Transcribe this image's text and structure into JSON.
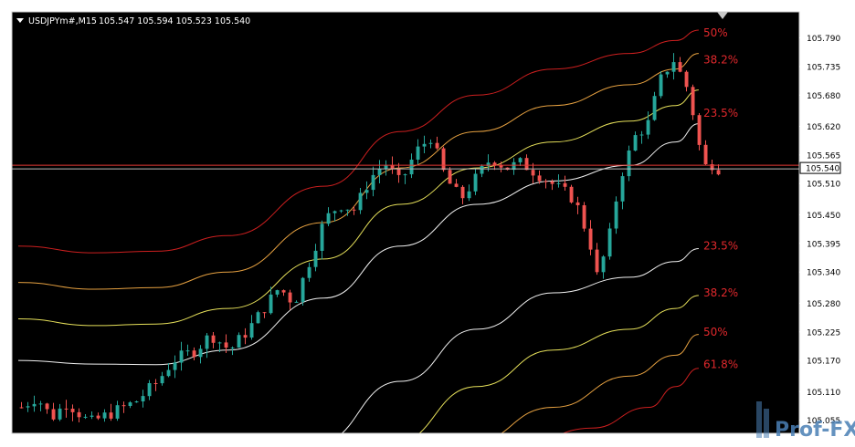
{
  "chart_data": {
    "type": "candlestick",
    "header": {
      "symbol": "USDJPYm#,M15",
      "ohlc": "105.547 105.594 105.523 105.540"
    },
    "ylim": [
      105.03,
      105.84
    ],
    "y_ticks": [
      105.79,
      105.735,
      105.68,
      105.62,
      105.565,
      105.51,
      105.45,
      105.395,
      105.34,
      105.28,
      105.225,
      105.17,
      105.11,
      105.055
    ],
    "y_tick_labels": [
      "105.790",
      "105.735",
      "105.680",
      "105.620",
      "105.565",
      "105.510",
      "105.450",
      "105.395",
      "105.340",
      "105.280",
      "105.225",
      "105.170",
      "105.110",
      "105.055"
    ],
    "current_price": 105.54,
    "current_price_label": "105.540",
    "colors": {
      "background": "#000000",
      "bull": "#26a69a",
      "bear": "#ef5350",
      "axis": "#ffffff",
      "price_line": "#e53935",
      "level_label": "#e0282c"
    },
    "candle_count": 110,
    "path_points": [
      [
        0,
        105.08
      ],
      [
        4,
        105.1
      ],
      [
        8,
        105.06
      ],
      [
        12,
        105.09
      ],
      [
        18,
        105.05
      ],
      [
        24,
        105.07
      ],
      [
        30,
        105.09
      ],
      [
        36,
        105.13
      ],
      [
        40,
        105.17
      ],
      [
        46,
        105.19
      ],
      [
        50,
        105.22
      ],
      [
        55,
        105.19
      ],
      [
        60,
        105.23
      ],
      [
        64,
        105.27
      ],
      [
        68,
        105.31
      ],
      [
        72,
        105.28
      ],
      [
        76,
        105.36
      ],
      [
        80,
        105.44
      ],
      [
        84,
        105.47
      ],
      [
        88,
        105.46
      ],
      [
        92,
        105.52
      ],
      [
        96,
        105.55
      ],
      [
        100,
        105.51
      ],
      [
        104,
        105.57
      ],
      [
        108,
        105.6
      ],
      [
        112,
        105.52
      ],
      [
        116,
        105.48
      ],
      [
        120,
        105.52
      ],
      [
        124,
        105.56
      ],
      [
        128,
        105.54
      ],
      [
        132,
        105.55
      ],
      [
        136,
        105.53
      ],
      [
        140,
        105.51
      ],
      [
        146,
        105.48
      ],
      [
        150,
        105.4
      ],
      [
        152,
        105.33
      ],
      [
        155,
        105.4
      ],
      [
        158,
        105.52
      ],
      [
        162,
        105.6
      ],
      [
        166,
        105.63
      ],
      [
        168,
        105.7
      ],
      [
        172,
        105.75
      ],
      [
        176,
        105.69
      ],
      [
        178,
        105.62
      ],
      [
        180,
        105.54
      ],
      [
        182,
        105.55
      ],
      [
        184,
        105.54
      ]
    ],
    "bands": [
      {
        "level": "50%",
        "color": "#cc1f1f",
        "points": [
          [
            0,
            105.39
          ],
          [
            20,
            105.377
          ],
          [
            36,
            105.38
          ],
          [
            55,
            105.41
          ],
          [
            80,
            105.505
          ],
          [
            100,
            105.61
          ],
          [
            120,
            105.68
          ],
          [
            140,
            105.73
          ],
          [
            160,
            105.76
          ],
          [
            172,
            105.785
          ],
          [
            178,
            105.805
          ]
        ]
      },
      {
        "level": "38.2%",
        "color": "#e5a040",
        "points": [
          [
            0,
            105.32
          ],
          [
            20,
            105.307
          ],
          [
            36,
            105.31
          ],
          [
            55,
            105.34
          ],
          [
            80,
            105.435
          ],
          [
            100,
            105.54
          ],
          [
            120,
            105.61
          ],
          [
            140,
            105.66
          ],
          [
            160,
            105.7
          ],
          [
            172,
            105.73
          ],
          [
            178,
            105.76
          ]
        ]
      },
      {
        "level": "23.5%",
        "color": "#e6e05a",
        "points": [
          [
            0,
            105.25
          ],
          [
            20,
            105.237
          ],
          [
            36,
            105.24
          ],
          [
            55,
            105.27
          ],
          [
            80,
            105.365
          ],
          [
            100,
            105.47
          ],
          [
            120,
            105.54
          ],
          [
            140,
            105.59
          ],
          [
            160,
            105.63
          ],
          [
            172,
            105.66
          ],
          [
            178,
            105.69
          ]
        ]
      },
      {
        "level": "",
        "color": "#f0f0f0",
        "points": [
          [
            0,
            105.17
          ],
          [
            20,
            105.163
          ],
          [
            36,
            105.162
          ],
          [
            55,
            105.19
          ],
          [
            80,
            105.29
          ],
          [
            100,
            105.39
          ],
          [
            120,
            105.47
          ],
          [
            140,
            105.515
          ],
          [
            160,
            105.545
          ],
          [
            172,
            105.59
          ],
          [
            178,
            105.625
          ]
        ]
      },
      {
        "level": "23.5%",
        "color": "#f0f0f0",
        "points": [
          [
            78,
            105.01
          ],
          [
            100,
            105.13
          ],
          [
            120,
            105.23
          ],
          [
            140,
            105.3
          ],
          [
            160,
            105.33
          ],
          [
            172,
            105.36
          ],
          [
            178,
            105.385
          ]
        ]
      },
      {
        "level": "38.2%",
        "color": "#e6e05a",
        "points": [
          [
            98,
            105.01
          ],
          [
            120,
            105.12
          ],
          [
            140,
            105.19
          ],
          [
            160,
            105.23
          ],
          [
            172,
            105.27
          ],
          [
            178,
            105.295
          ]
        ]
      },
      {
        "level": "50%",
        "color": "#e5a040",
        "points": [
          [
            118,
            105.01
          ],
          [
            140,
            105.08
          ],
          [
            160,
            105.14
          ],
          [
            172,
            105.18
          ],
          [
            178,
            105.22
          ]
        ]
      },
      {
        "level": "61.8%",
        "color": "#cc1f1f",
        "points": [
          [
            132,
            105.01
          ],
          [
            150,
            105.04
          ],
          [
            165,
            105.08
          ],
          [
            172,
            105.12
          ],
          [
            178,
            105.155
          ]
        ]
      }
    ],
    "level_labels": [
      {
        "text": "50%",
        "price": 105.8
      },
      {
        "text": "38.2%",
        "price": 105.748
      },
      {
        "text": "23.5%",
        "price": 105.645
      },
      {
        "text": "23.5%",
        "price": 105.39
      },
      {
        "text": "38.2%",
        "price": 105.3
      },
      {
        "text": "50%",
        "price": 105.225
      },
      {
        "text": "61.8%",
        "price": 105.162
      }
    ]
  },
  "watermark": {
    "brand": "Prof-FX",
    "brand_color": "#4a7fb5"
  }
}
